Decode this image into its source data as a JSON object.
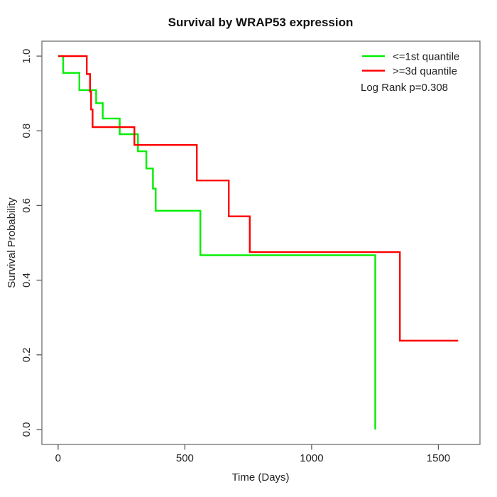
{
  "title": "Survival by WRAP53 expression",
  "axes": {
    "x": {
      "label": "Time (Days)",
      "ticks": [
        "0",
        "500",
        "1000",
        "1500"
      ],
      "tick_values": [
        0,
        500,
        1000,
        1500
      ]
    },
    "y": {
      "label": "Survival Probability",
      "ticks": [
        "1.0",
        "0.8",
        "0.6",
        "0.4",
        "0.2",
        "0.0"
      ],
      "tick_values": [
        1.0,
        0.8,
        0.6,
        0.4,
        0.2,
        0.0
      ]
    }
  },
  "legend": {
    "items": [
      {
        "label": "<=1st quantile",
        "color": "#00EE00"
      },
      {
        "label": ">=3d quantile",
        "color": "#FF0000"
      }
    ],
    "stat_note": "Log Rank p=0.308"
  },
  "chart_data": {
    "type": "line",
    "subtype": "kaplan-meier-step",
    "title": "Survival by WRAP53 expression",
    "xlabel": "Time (Days)",
    "ylabel": "Survival Probability",
    "xlim": [
      -64,
      1664
    ],
    "ylim": [
      -0.04,
      1.04
    ],
    "x_ticks": [
      0,
      500,
      1000,
      1500
    ],
    "y_ticks": [
      0.0,
      0.2,
      0.4,
      0.6,
      0.8,
      1.0
    ],
    "grid": false,
    "legend_position": "top-right",
    "annotation": "Log Rank p=0.308",
    "series": [
      {
        "name": "<=1st quantile",
        "color": "#00EE00",
        "end_time": 1251,
        "steps": [
          [
            0,
            1.0
          ],
          [
            20,
            0.955
          ],
          [
            84,
            0.909
          ],
          [
            150,
            0.874
          ],
          [
            176,
            0.833
          ],
          [
            243,
            0.791
          ],
          [
            315,
            0.745
          ],
          [
            348,
            0.699
          ],
          [
            374,
            0.645
          ],
          [
            385,
            0.586
          ],
          [
            561,
            0.467
          ],
          [
            1251,
            0.0
          ]
        ]
      },
      {
        "name": ">=3d quantile",
        "color": "#FF0000",
        "end_time": 1578,
        "steps": [
          [
            0,
            1.0
          ],
          [
            113,
            0.952
          ],
          [
            126,
            0.905
          ],
          [
            130,
            0.857
          ],
          [
            136,
            0.81
          ],
          [
            301,
            0.762
          ],
          [
            547,
            0.667
          ],
          [
            673,
            0.571
          ],
          [
            756,
            0.475
          ],
          [
            1348,
            0.238
          ]
        ]
      }
    ]
  }
}
